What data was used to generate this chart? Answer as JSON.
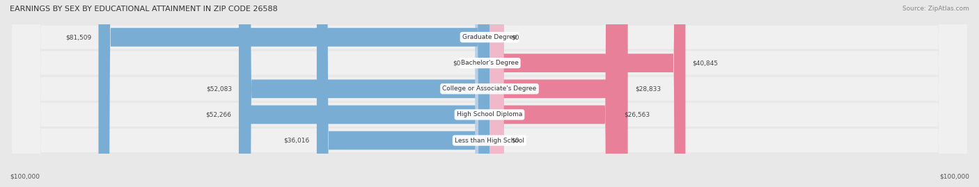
{
  "title": "EARNINGS BY SEX BY EDUCATIONAL ATTAINMENT IN ZIP CODE 26588",
  "source": "Source: ZipAtlas.com",
  "categories": [
    "Less than High School",
    "High School Diploma",
    "College or Associate's Degree",
    "Bachelor's Degree",
    "Graduate Degree"
  ],
  "male_values": [
    36016,
    52266,
    52083,
    0,
    81509
  ],
  "female_values": [
    0,
    26563,
    28833,
    40845,
    0
  ],
  "male_labels": [
    "$36,016",
    "$52,266",
    "$52,083",
    "$0",
    "$81,509"
  ],
  "female_labels": [
    "$0",
    "$26,563",
    "$28,833",
    "$40,845",
    "$0"
  ],
  "male_color": "#7aadd4",
  "female_color": "#e8809a",
  "male_color_zero": "#b8cfe8",
  "female_color_zero": "#f0b8c8",
  "max_val": 100000,
  "x_label_left": "$100,000",
  "x_label_right": "$100,000",
  "bg_color": "#e8e8e8",
  "row_bg_color": "#f0f0f0"
}
